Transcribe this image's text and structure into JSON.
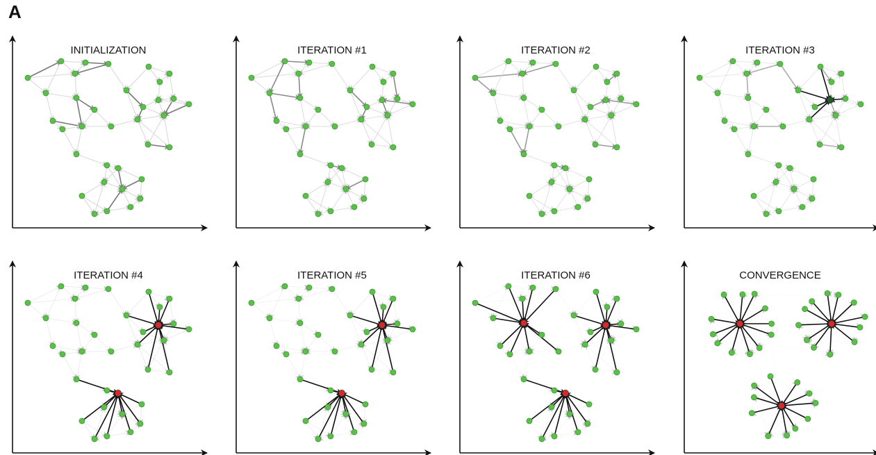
{
  "figure_label": "A",
  "panels": [
    {
      "title": "INITIALIZATION",
      "stage": 0
    },
    {
      "title": "ITERATION #1",
      "stage": 1
    },
    {
      "title": "ITERATION #2",
      "stage": 2
    },
    {
      "title": "ITERATION #3",
      "stage": 3
    },
    {
      "title": "ITERATION #4",
      "stage": 4
    },
    {
      "title": "ITERATION #5",
      "stage": 5
    },
    {
      "title": "ITERATION #6",
      "stage": 6
    },
    {
      "title": "CONVERGENCE",
      "stage": 7
    }
  ],
  "colors": {
    "data_point": "#5bbf4a",
    "data_point_stroke": "#3f9a34",
    "exemplar": "#d62a2a",
    "dark_candidate": "#1e5a2a",
    "strong_edge": "#111111",
    "weak_edge": "#d9d9d9",
    "axis": "#111111"
  }
}
